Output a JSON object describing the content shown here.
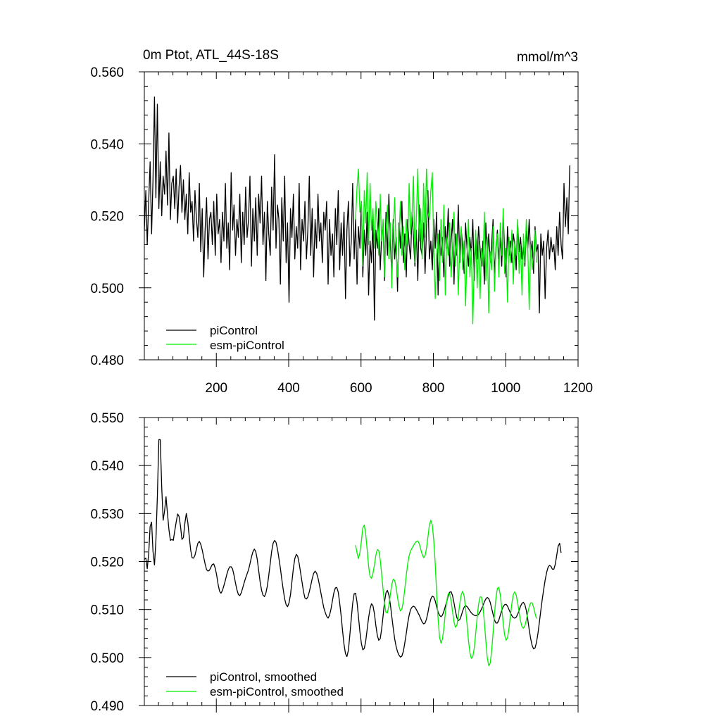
{
  "chart_data": [
    {
      "type": "line",
      "title": "0m Ptot, ATL_44S-18S",
      "units": "mmol/m^3",
      "xlim": [
        1,
        1200
      ],
      "ylim": [
        0.48,
        0.56
      ],
      "x_ticks": [
        200,
        400,
        600,
        800,
        1000,
        1200
      ],
      "x_tick_labels": [
        "200",
        "400",
        "600",
        "800",
        "1000",
        "1200"
      ],
      "y_ticks": [
        0.48,
        0.5,
        0.52,
        0.54,
        0.56
      ],
      "y_tick_labels": [
        "0.480",
        "0.500",
        "0.520",
        "0.540",
        "0.560"
      ],
      "legend_placement": "bottom-left",
      "series": [
        {
          "name": "piControl",
          "color": "#000000",
          "x_start": 1,
          "x_step": 4,
          "values": [
            0.516,
            0.527,
            0.512,
            0.524,
            0.535,
            0.515,
            0.53,
            0.553,
            0.525,
            0.551,
            0.522,
            0.535,
            0.52,
            0.531,
            0.526,
            0.538,
            0.523,
            0.543,
            0.519,
            0.529,
            0.531,
            0.522,
            0.533,
            0.518,
            0.528,
            0.534,
            0.521,
            0.53,
            0.519,
            0.526,
            0.515,
            0.532,
            0.521,
            0.524,
            0.513,
            0.527,
            0.519,
            0.514,
            0.529,
            0.51,
            0.522,
            0.503,
            0.516,
            0.525,
            0.508,
            0.519,
            0.521,
            0.512,
            0.524,
            0.509,
            0.526,
            0.515,
            0.519,
            0.507,
            0.521,
            0.513,
            0.529,
            0.511,
            0.518,
            0.505,
            0.532,
            0.516,
            0.523,
            0.509,
            0.519,
            0.514,
            0.526,
            0.507,
            0.521,
            0.512,
            0.528,
            0.514,
            0.519,
            0.531,
            0.506,
            0.522,
            0.513,
            0.525,
            0.509,
            0.526,
            0.518,
            0.531,
            0.512,
            0.521,
            0.502,
            0.524,
            0.515,
            0.509,
            0.528,
            0.516,
            0.537,
            0.511,
            0.523,
            0.519,
            0.501,
            0.525,
            0.513,
            0.531,
            0.507,
            0.518,
            0.496,
            0.522,
            0.514,
            0.526,
            0.508,
            0.517,
            0.511,
            0.529,
            0.505,
            0.519,
            0.513,
            0.524,
            0.508,
            0.516,
            0.531,
            0.509,
            0.522,
            0.503,
            0.519,
            0.511,
            0.526,
            0.513,
            0.518,
            0.507,
            0.521,
            0.516,
            0.524,
            0.501,
            0.519,
            0.509,
            0.515,
            0.503,
            0.522,
            0.512,
            0.527,
            0.505,
            0.518,
            0.509,
            0.521,
            0.497,
            0.516,
            0.524,
            0.506,
            0.513,
            0.529,
            0.508,
            0.519,
            0.501,
            0.517,
            0.511,
            0.524,
            0.503,
            0.516,
            0.509,
            0.521,
            0.498,
            0.513,
            0.507,
            0.519,
            0.491,
            0.516,
            0.511,
            0.522,
            0.505,
            0.514,
            0.518,
            0.502,
            0.521,
            0.509,
            0.526,
            0.512,
            0.504,
            0.519,
            0.508,
            0.514,
            0.499,
            0.518,
            0.511,
            0.524,
            0.507,
            0.515,
            0.503,
            0.519,
            0.512,
            0.508,
            0.521,
            0.514,
            0.506,
            0.516,
            0.502,
            0.523,
            0.511,
            0.509,
            0.518,
            0.504,
            0.516,
            0.527,
            0.508,
            0.513,
            0.505,
            0.519,
            0.511,
            0.521,
            0.498,
            0.516,
            0.509,
            0.514,
            0.503,
            0.517,
            0.511,
            0.522,
            0.506,
            0.513,
            0.519,
            0.501,
            0.515,
            0.509,
            0.523,
            0.507,
            0.516,
            0.512,
            0.504,
            0.518,
            0.511,
            0.506,
            0.514,
            0.509,
            0.519,
            0.502,
            0.515,
            0.508,
            0.517,
            0.511,
            0.506,
            0.513,
            0.501,
            0.518,
            0.509,
            0.515,
            0.507,
            0.512,
            0.519,
            0.504,
            0.511,
            0.516,
            0.508,
            0.514,
            0.506,
            0.52,
            0.511,
            0.503,
            0.517,
            0.509,
            0.513,
            0.507,
            0.515,
            0.512,
            0.505,
            0.518,
            0.51,
            0.514,
            0.508,
            0.512,
            0.506,
            0.516,
            0.511,
            0.519,
            0.509,
            0.513,
            0.504,
            0.517,
            0.51,
            0.512,
            0.493,
            0.515,
            0.509,
            0.513,
            0.497,
            0.511,
            0.516,
            0.508,
            0.514,
            0.51,
            0.512,
            0.505,
            0.517,
            0.509,
            0.521,
            0.512,
            0.508,
            0.529,
            0.517,
            0.525,
            0.515,
            0.534
          ]
        },
        {
          "name": "esm-piControl",
          "color": "#00ee00",
          "x_start": 585,
          "x_step": 4,
          "values": [
            0.519,
            0.528,
            0.533,
            0.521,
            0.524,
            0.506,
            0.527,
            0.518,
            0.532,
            0.512,
            0.529,
            0.516,
            0.522,
            0.511,
            0.524,
            0.517,
            0.509,
            0.526,
            0.513,
            0.519,
            0.503,
            0.515,
            0.523,
            0.508,
            0.518,
            0.5,
            0.516,
            0.525,
            0.511,
            0.503,
            0.514,
            0.524,
            0.509,
            0.517,
            0.505,
            0.519,
            0.512,
            0.529,
            0.515,
            0.52,
            0.531,
            0.507,
            0.519,
            0.533,
            0.513,
            0.522,
            0.508,
            0.529,
            0.514,
            0.533,
            0.521,
            0.519,
            0.527,
            0.532,
            0.511,
            0.497,
            0.509,
            0.515,
            0.502,
            0.519,
            0.507,
            0.523,
            0.498,
            0.514,
            0.509,
            0.518,
            0.503,
            0.511,
            0.521,
            0.506,
            0.515,
            0.498,
            0.512,
            0.517,
            0.505,
            0.513,
            0.495,
            0.509,
            0.519,
            0.503,
            0.511,
            0.49,
            0.507,
            0.516,
            0.5,
            0.513,
            0.497,
            0.511,
            0.506,
            0.521,
            0.502,
            0.514,
            0.493,
            0.51,
            0.505,
            0.517,
            0.499,
            0.512,
            0.515,
            0.503,
            0.518,
            0.509,
            0.522,
            0.504,
            0.511,
            0.496,
            0.514,
            0.507,
            0.516,
            0.501,
            0.513,
            0.509,
            0.519,
            0.504,
            0.512,
            0.498,
            0.515,
            0.507,
            0.519,
            0.511,
            0.494,
            0.512,
            0.505,
            0.509,
            0.516,
            0.507
          ]
        }
      ]
    },
    {
      "type": "line",
      "xlim": [
        1,
        1200
      ],
      "ylim": [
        0.49,
        0.55
      ],
      "x_ticks": [
        200,
        400,
        600,
        800,
        1000,
        1200
      ],
      "y_ticks": [
        0.49,
        0.5,
        0.51,
        0.52,
        0.53,
        0.54,
        0.55
      ],
      "y_tick_labels": [
        "0.490",
        "0.500",
        "0.510",
        "0.520",
        "0.530",
        "0.540",
        "0.550"
      ],
      "legend_placement": "bottom-left",
      "series": [
        {
          "name": "piControl, smoothed",
          "color": "#000000",
          "x_start": 1,
          "x_step": 4,
          "values": [
            0.5205,
            0.5207,
            0.5185,
            0.5217,
            0.5273,
            0.5282,
            0.5221,
            0.5193,
            0.5243,
            0.5336,
            0.5454,
            0.5454,
            0.5354,
            0.5286,
            0.5306,
            0.5335,
            0.5299,
            0.5267,
            0.5244,
            0.5246,
            0.5244,
            0.5264,
            0.5282,
            0.5299,
            0.5294,
            0.5273,
            0.5246,
            0.525,
            0.5279,
            0.53,
            0.5282,
            0.5253,
            0.5224,
            0.5208,
            0.5207,
            0.5213,
            0.5226,
            0.5238,
            0.5242,
            0.5236,
            0.5224,
            0.5209,
            0.5195,
            0.5183,
            0.518,
            0.5182,
            0.5188,
            0.5194,
            0.5195,
            0.5186,
            0.5171,
            0.5152,
            0.5138,
            0.5134,
            0.514,
            0.515,
            0.5161,
            0.5173,
            0.5183,
            0.5189,
            0.5189,
            0.5184,
            0.5171,
            0.5155,
            0.5141,
            0.5131,
            0.5129,
            0.5135,
            0.5145,
            0.5156,
            0.5166,
            0.5174,
            0.5183,
            0.5195,
            0.5209,
            0.522,
            0.5226,
            0.5221,
            0.5205,
            0.5182,
            0.5158,
            0.514,
            0.513,
            0.5127,
            0.5134,
            0.5149,
            0.5171,
            0.5196,
            0.5221,
            0.5238,
            0.5244,
            0.524,
            0.5226,
            0.5207,
            0.5186,
            0.5163,
            0.5141,
            0.5122,
            0.511,
            0.5106,
            0.5114,
            0.5131,
            0.5158,
            0.5186,
            0.5206,
            0.5215,
            0.5211,
            0.5196,
            0.5177,
            0.5157,
            0.5137,
            0.5124,
            0.5122,
            0.5126,
            0.5137,
            0.515,
            0.5164,
            0.5175,
            0.518,
            0.5176,
            0.5166,
            0.5151,
            0.5135,
            0.5119,
            0.5104,
            0.5094,
            0.5086,
            0.5082,
            0.5088,
            0.5101,
            0.5119,
            0.5135,
            0.5145,
            0.5146,
            0.5136,
            0.5114,
            0.5087,
            0.5056,
            0.5027,
            0.5008,
            0.5002,
            0.5015,
            0.5046,
            0.5081,
            0.5113,
            0.5133,
            0.5134,
            0.5115,
            0.5085,
            0.5053,
            0.5029,
            0.5016,
            0.5019,
            0.5034,
            0.5059,
            0.5083,
            0.5102,
            0.5112,
            0.5108,
            0.5091,
            0.5067,
            0.5046,
            0.5036,
            0.5039,
            0.5059,
            0.5087,
            0.5116,
            0.5135,
            0.514,
            0.513,
            0.5111,
            0.5086,
            0.5061,
            0.5039,
            0.5023,
            0.5012,
            0.5005,
            0.5001,
            0.5003,
            0.5013,
            0.503,
            0.505,
            0.5071,
            0.5088,
            0.51,
            0.5105,
            0.5107,
            0.5105,
            0.51,
            0.5094,
            0.5088,
            0.5081,
            0.5074,
            0.507,
            0.5072,
            0.508,
            0.5094,
            0.511,
            0.5122,
            0.5128,
            0.5126,
            0.5118,
            0.5106,
            0.5095,
            0.5088,
            0.5085,
            0.5088,
            0.5096,
            0.5106,
            0.5117,
            0.5128,
            0.5136,
            0.5137,
            0.5129,
            0.5114,
            0.5097,
            0.5083,
            0.5077,
            0.5079,
            0.5087,
            0.5097,
            0.5105,
            0.5108,
            0.5106,
            0.5102,
            0.5097,
            0.5093,
            0.509,
            0.5088,
            0.5087,
            0.5088,
            0.509,
            0.5095,
            0.5101,
            0.5108,
            0.5116,
            0.5122,
            0.5125,
            0.5123,
            0.5115,
            0.5103,
            0.509,
            0.5078,
            0.5072,
            0.5072,
            0.5078,
            0.5088,
            0.5098,
            0.5106,
            0.511,
            0.5111,
            0.5107,
            0.51,
            0.5093,
            0.5087,
            0.5083,
            0.5082,
            0.5084,
            0.509,
            0.5098,
            0.5107,
            0.5113,
            0.5115,
            0.511,
            0.5098,
            0.5079,
            0.5058,
            0.5039,
            0.5025,
            0.5018,
            0.502,
            0.5031,
            0.505,
            0.5073,
            0.5098,
            0.5121,
            0.5142,
            0.5161,
            0.5177,
            0.5188,
            0.5192,
            0.519,
            0.5184,
            0.5184,
            0.5194,
            0.5213,
            0.5232,
            0.5238,
            0.5218
          ]
        },
        {
          "name": "esm-piControl, smoothed",
          "color": "#00ee00",
          "x_start": 585,
          "x_step": 4,
          "values": [
            0.5234,
            0.5218,
            0.5206,
            0.5219,
            0.5243,
            0.527,
            0.5276,
            0.5257,
            0.5224,
            0.519,
            0.5169,
            0.5165,
            0.5175,
            0.5193,
            0.5213,
            0.5225,
            0.5223,
            0.5204,
            0.5174,
            0.5141,
            0.5111,
            0.5094,
            0.5093,
            0.5108,
            0.5131,
            0.5152,
            0.5163,
            0.5161,
            0.5146,
            0.5125,
            0.5107,
            0.5097,
            0.5101,
            0.5117,
            0.5143,
            0.5171,
            0.5195,
            0.5212,
            0.5222,
            0.5228,
            0.5233,
            0.5238,
            0.5242,
            0.5243,
            0.5237,
            0.5226,
            0.5215,
            0.5208,
            0.5212,
            0.5227,
            0.5251,
            0.5276,
            0.5286,
            0.5276,
            0.5245,
            0.5196,
            0.5135,
            0.5081,
            0.5043,
            0.503,
            0.5038,
            0.5061,
            0.5092,
            0.5118,
            0.5133,
            0.5133,
            0.5118,
            0.5096,
            0.5074,
            0.5063,
            0.5067,
            0.5087,
            0.5112,
            0.5131,
            0.5138,
            0.5128,
            0.5103,
            0.507,
            0.5036,
            0.501,
            0.4998,
            0.5002,
            0.502,
            0.505,
            0.5084,
            0.5111,
            0.5126,
            0.5126,
            0.5107,
            0.5074,
            0.5035,
            0.5,
            0.4983,
            0.4988,
            0.5013,
            0.5051,
            0.5091,
            0.5124,
            0.5144,
            0.5146,
            0.5131,
            0.5103,
            0.5072,
            0.5047,
            0.5036,
            0.5041,
            0.506,
            0.5087,
            0.5113,
            0.5131,
            0.5137,
            0.513,
            0.5114,
            0.5094,
            0.5076,
            0.5064,
            0.5061,
            0.5066,
            0.5078,
            0.5093,
            0.5106,
            0.5114,
            0.5114,
            0.5105,
            0.5092,
            0.5081
          ]
        }
      ]
    }
  ]
}
